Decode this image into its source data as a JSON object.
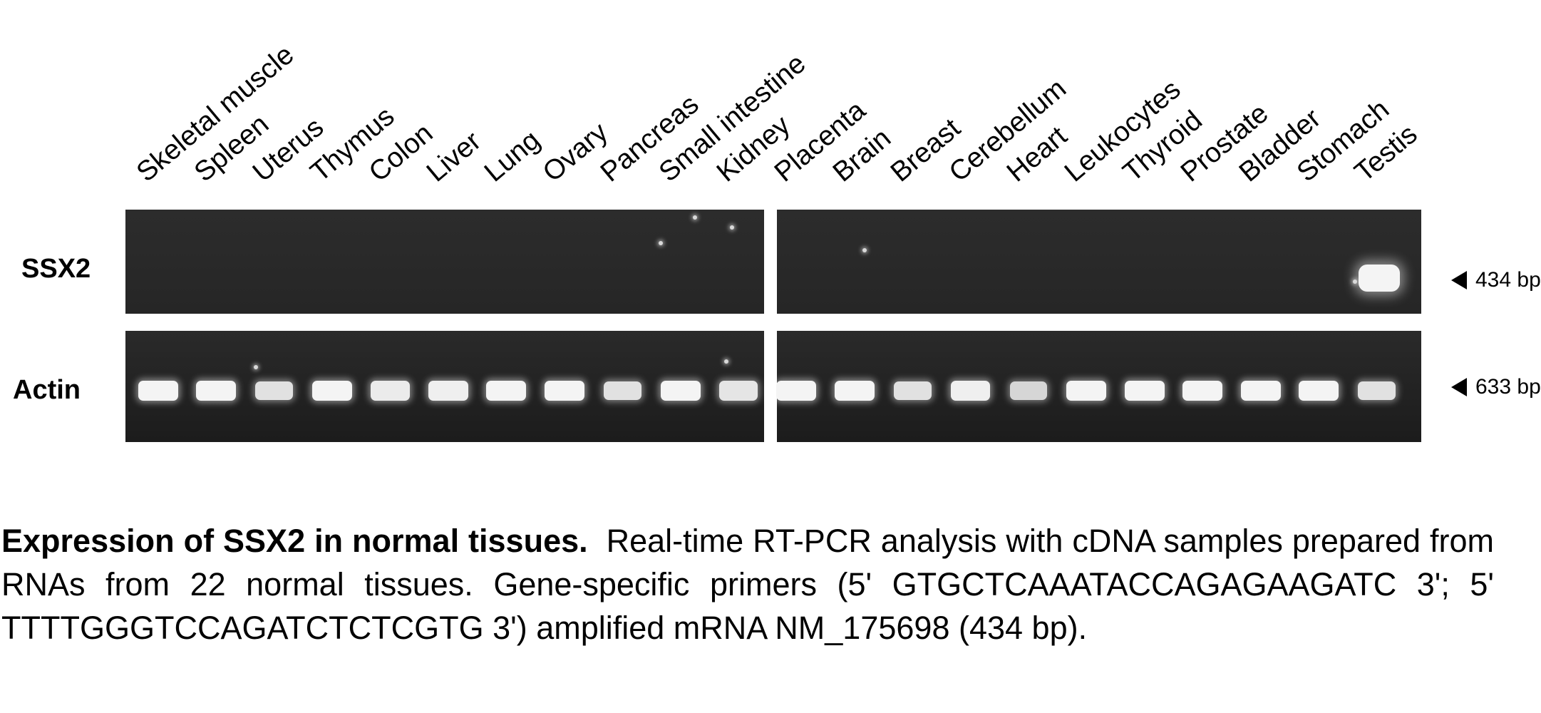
{
  "lanes": [
    "Skeletal muscle",
    "Spleen",
    "Uterus",
    "Thymus",
    "Colon",
    "Liver",
    "Lung",
    "Ovary",
    "Pancreas",
    "Small intestine",
    "Kidney",
    "Placenta",
    "Brain",
    "Breast",
    "Cerebellum",
    "Heart",
    "Leukocytes",
    "Thyroid",
    "Prostate",
    "Bladder",
    "Stomach",
    "Testis"
  ],
  "rows": {
    "ssx2": {
      "label": "SSX2",
      "marker": "434 bp"
    },
    "actin": {
      "label": "Actin",
      "marker": "633 bp"
    }
  },
  "ssx2_expression": [
    0,
    0,
    0,
    0,
    0,
    0,
    0,
    0,
    0,
    0,
    0,
    0,
    0,
    0,
    0,
    0,
    0,
    0,
    0,
    0,
    0,
    1
  ],
  "actin_expression": [
    1,
    1,
    0.8,
    1,
    0.9,
    0.95,
    1,
    1,
    0.8,
    1,
    0.85,
    1,
    1,
    0.8,
    0.95,
    0.7,
    1,
    1,
    1,
    1,
    1,
    0.8
  ],
  "caption": {
    "title": "Expression of SSX2 in normal tissues.",
    "text": "Real-time RT-PCR analysis with cDNA samples prepared from RNAs from 22 normal tissues. Gene-specific primers (5' GTGCTCAAATACCAGAGAAGATC 3'; 5' TTTTGGGTCCAGATCTCTCGTG 3') amplified mRNA NM_175698 (434 bp)."
  },
  "colors": {
    "gel_background": "#2b2b2b",
    "band": "#f4f4f4",
    "page_background": "#ffffff"
  }
}
